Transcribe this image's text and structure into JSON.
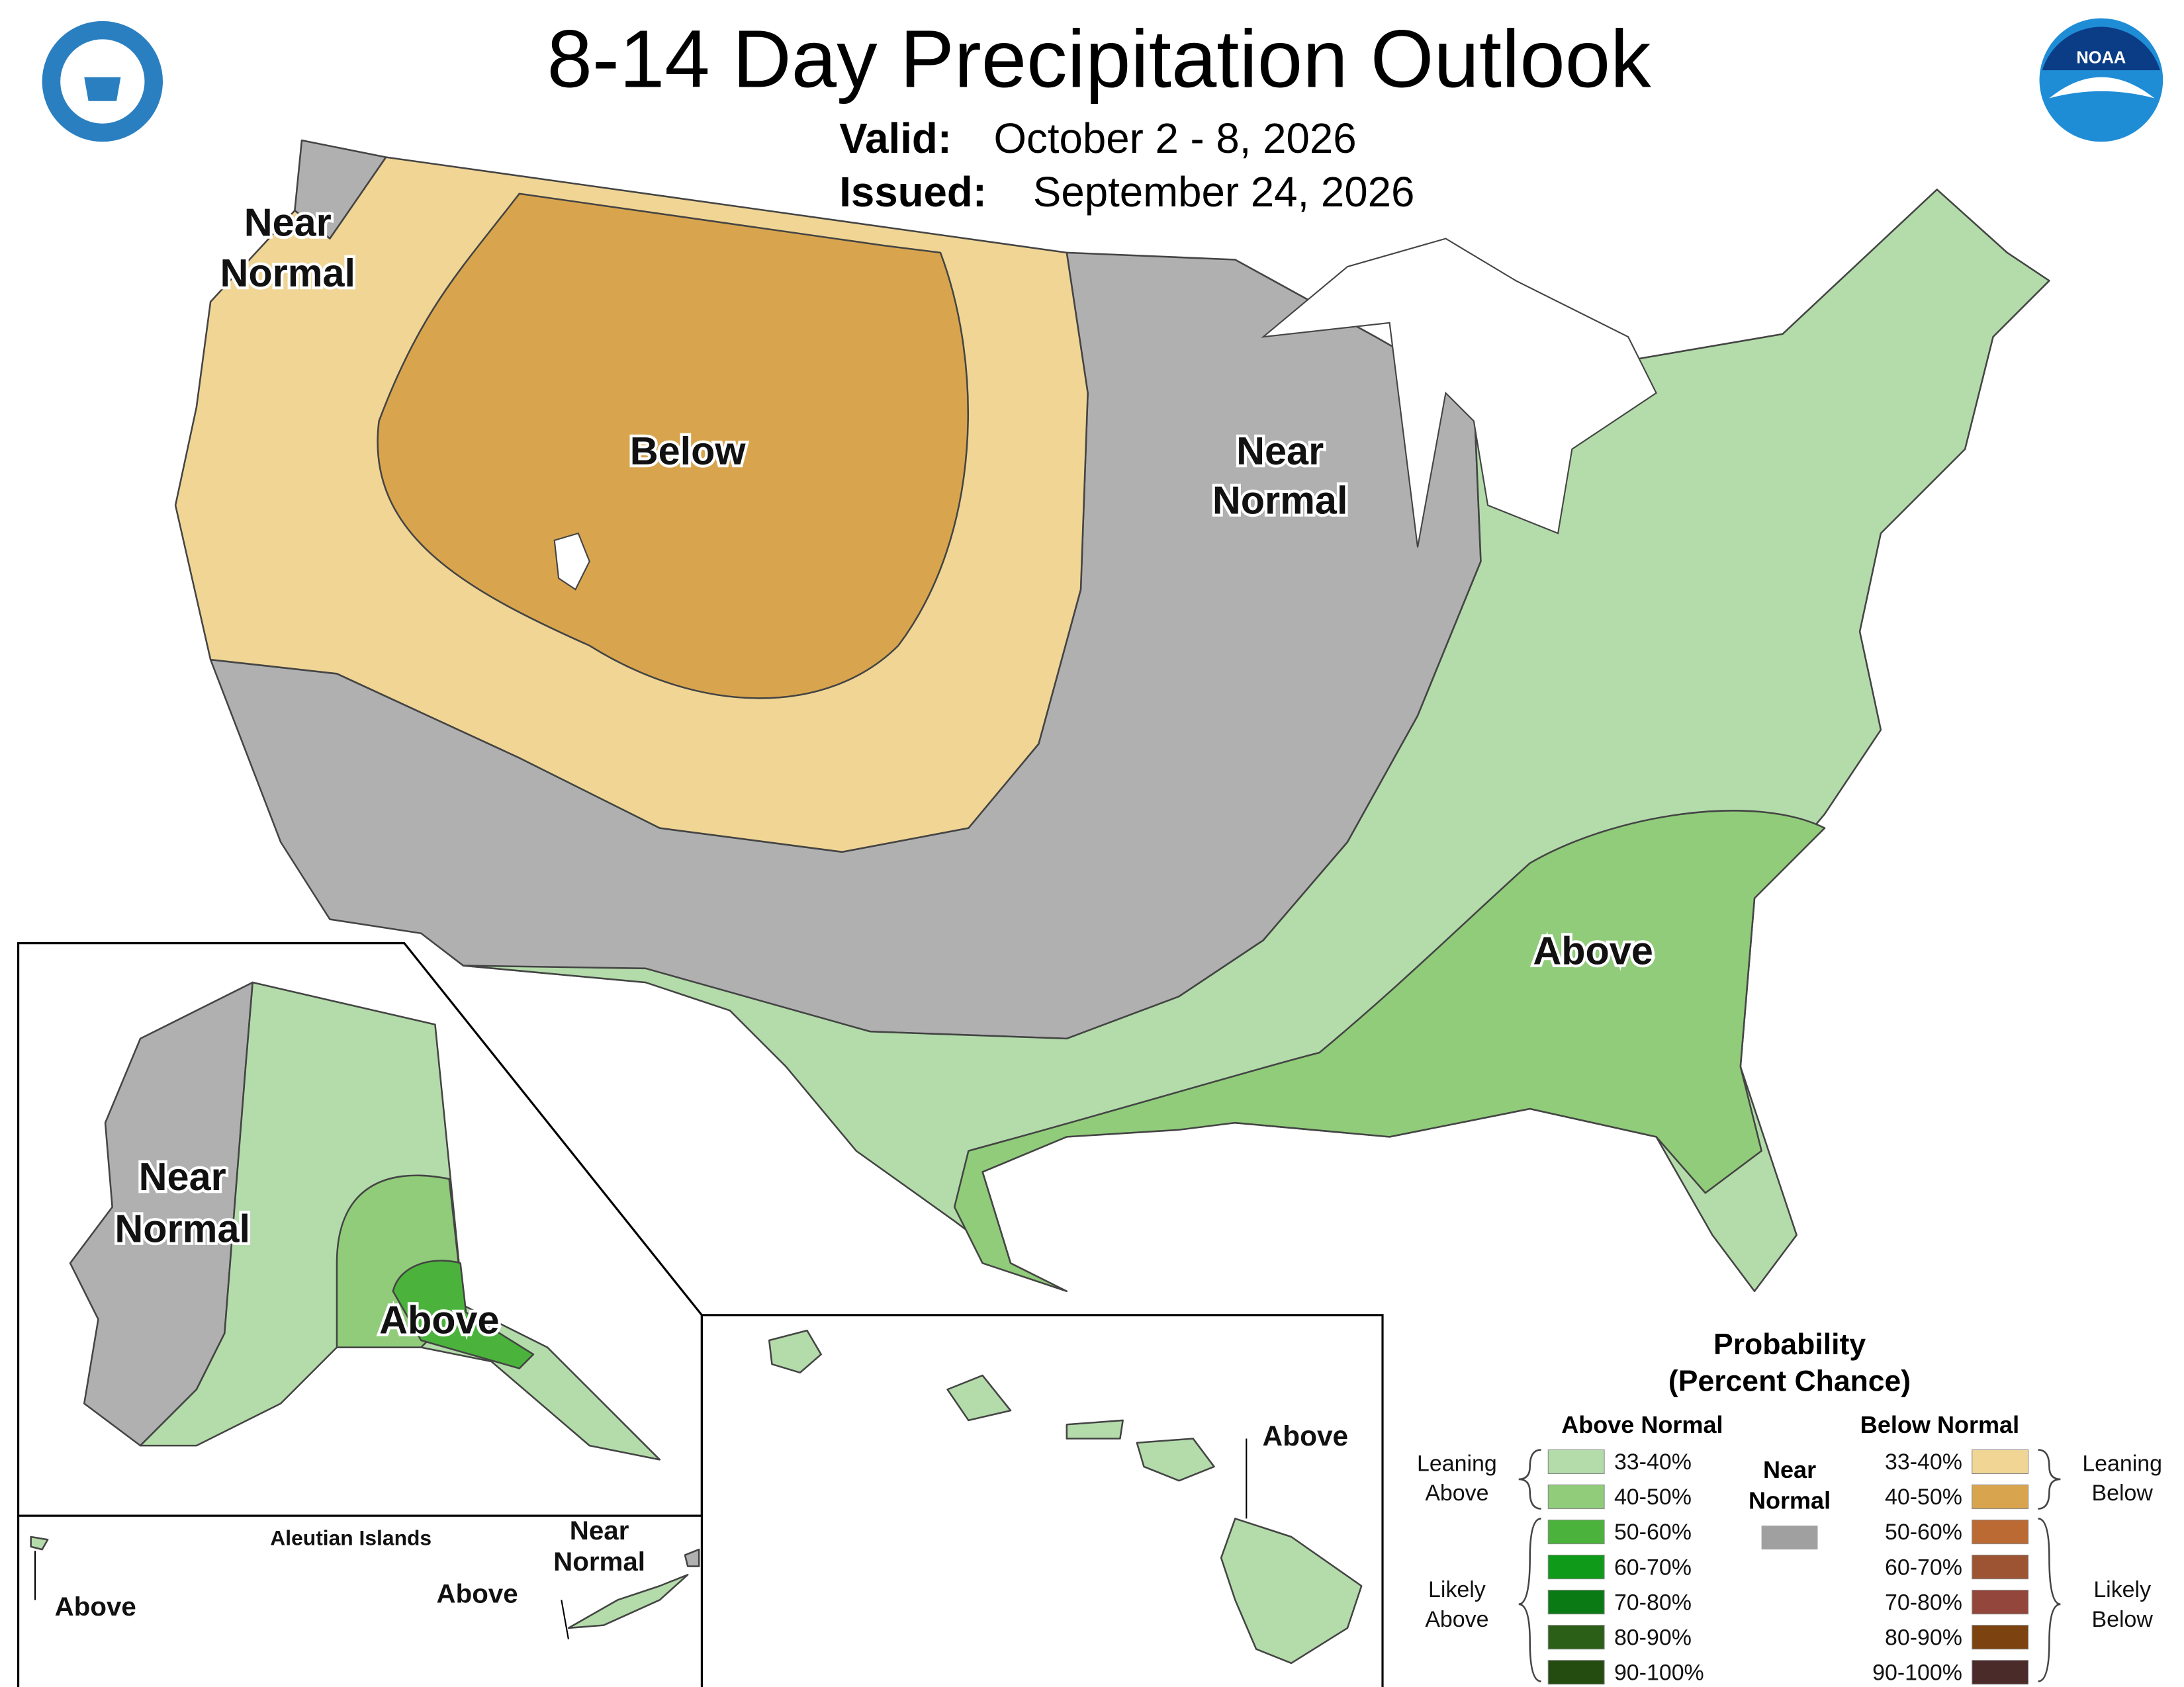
{
  "header": {
    "title": "8-14 Day Precipitation Outlook",
    "valid_label": "Valid:",
    "valid": "October 2 - 8, 2026",
    "issued_label": "Issued:",
    "issued": "September 24, 2026"
  },
  "map_labels": [
    {
      "lines": [
        "Near",
        "Normal"
      ]
    },
    {
      "lines": [
        "Below"
      ]
    },
    {
      "lines": [
        "Near",
        "Normal"
      ]
    },
    {
      "lines": [
        "Above"
      ]
    },
    {
      "lines": [
        "Near",
        "Normal"
      ]
    },
    {
      "lines": [
        "Above"
      ]
    },
    {
      "lines": [
        "Above"
      ]
    },
    {
      "lines": [
        "Aleutian Islands"
      ]
    },
    {
      "lines": [
        "Above"
      ]
    },
    {
      "lines": [
        "Near",
        "Normal"
      ]
    },
    {
      "lines": [
        "Above"
      ]
    }
  ],
  "legend": {
    "title": [
      "Probability",
      "(Percent Chance)"
    ],
    "above_header": "Above Normal",
    "below_header": "Below Normal",
    "near": {
      "lines": [
        "Near",
        "Normal"
      ],
      "color": "#a0a0a0"
    },
    "above": [
      {
        "label": "33-40%",
        "color": "#b3dcaa"
      },
      {
        "label": "40-50%",
        "color": "#90cc7a"
      },
      {
        "label": "50-60%",
        "color": "#4bb33c"
      },
      {
        "label": "60-70%",
        "color": "#0f9a1a"
      },
      {
        "label": "70-80%",
        "color": "#0a7a14"
      },
      {
        "label": "80-90%",
        "color": "#2b5e17"
      },
      {
        "label": "90-100%",
        "color": "#244b10"
      }
    ],
    "below": [
      {
        "label": "33-40%",
        "color": "#f0d595"
      },
      {
        "label": "40-50%",
        "color": "#d8a54e"
      },
      {
        "label": "50-60%",
        "color": "#bb6a34"
      },
      {
        "label": "60-70%",
        "color": "#9c5433"
      },
      {
        "label": "70-80%",
        "color": "#93463c"
      },
      {
        "label": "80-90%",
        "color": "#7c4310"
      },
      {
        "label": "90-100%",
        "color": "#4b2a2a"
      }
    ],
    "groups": {
      "leaning_above": [
        "Leaning",
        "Above"
      ],
      "likely_above": [
        "Likely",
        "Above"
      ],
      "leaning_below": [
        "Leaning",
        "Below"
      ],
      "likely_below": [
        "Likely",
        "Below"
      ]
    }
  }
}
